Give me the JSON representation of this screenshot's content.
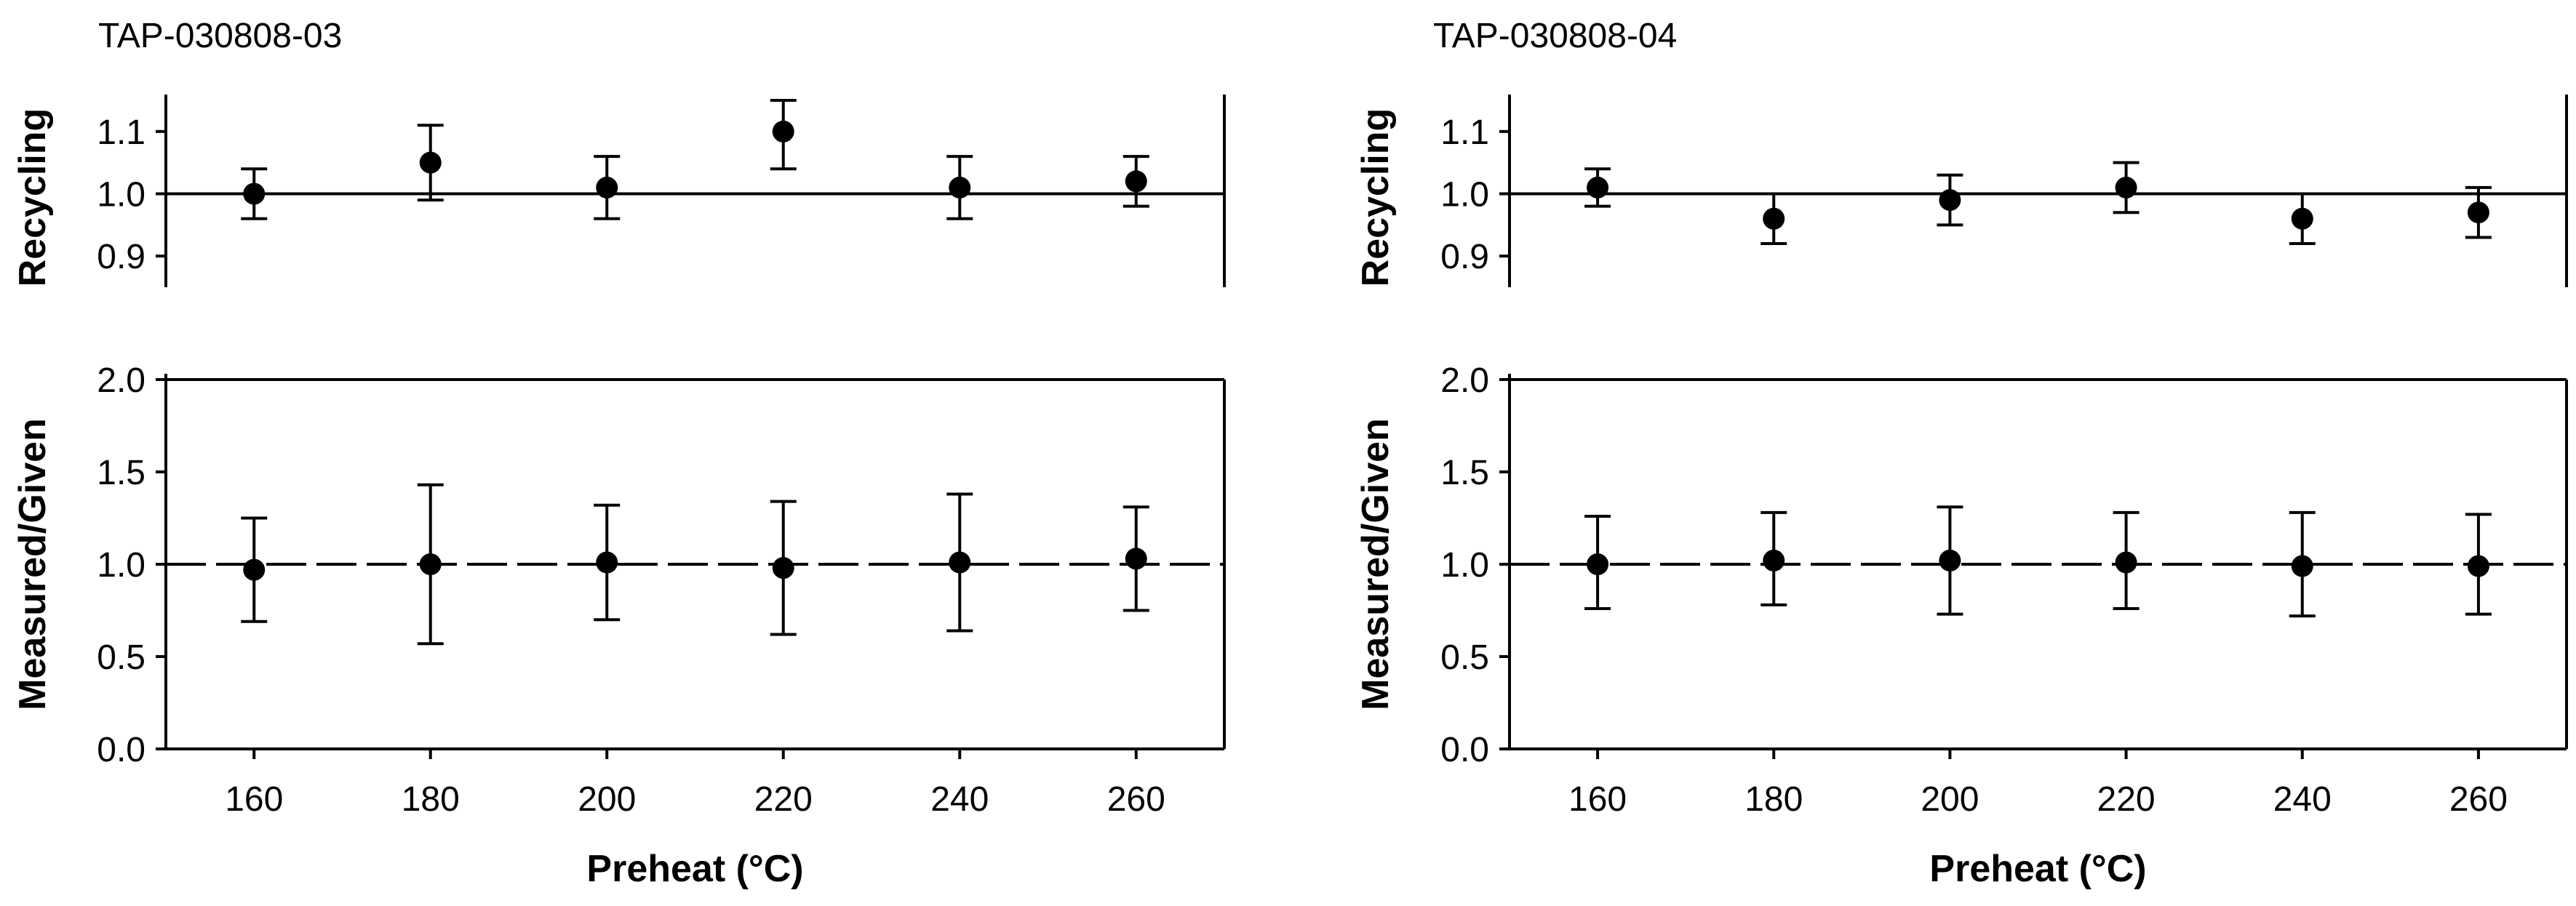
{
  "chart_data": [
    {
      "type": "scatter",
      "title": "TAP-030808-03",
      "ylabel": "Recycling",
      "xlabel": "",
      "x": [
        160,
        180,
        200,
        220,
        240,
        260
      ],
      "xlim": [
        150,
        270
      ],
      "xticks": [
        160,
        180,
        200,
        220,
        240,
        260
      ],
      "ylim": [
        0.85,
        1.15
      ],
      "yticks": [
        "0.9",
        "1.0",
        "1.1"
      ],
      "reference_line": {
        "y": 1.0,
        "style": "solid"
      },
      "series": [
        {
          "values": [
            1.0,
            1.05,
            1.01,
            1.1,
            1.01,
            1.02
          ],
          "err_low": [
            0.96,
            0.99,
            0.96,
            1.04,
            0.96,
            0.98
          ],
          "err_high": [
            1.04,
            1.11,
            1.06,
            1.15,
            1.06,
            1.06
          ]
        }
      ]
    },
    {
      "type": "scatter",
      "title": "",
      "ylabel": "Measured/Given",
      "xlabel": "Preheat (°C)",
      "x": [
        160,
        180,
        200,
        220,
        240,
        260
      ],
      "xlim": [
        150,
        270
      ],
      "xticks": [
        160,
        180,
        200,
        220,
        240,
        260
      ],
      "ylim": [
        0.0,
        2.0
      ],
      "yticks": [
        "0.0",
        "0.5",
        "1.0",
        "1.5",
        "2.0"
      ],
      "reference_line": {
        "y": 1.0,
        "style": "dashed"
      },
      "series": [
        {
          "values": [
            0.97,
            1.0,
            1.01,
            0.98,
            1.01,
            1.03
          ],
          "err_low": [
            0.69,
            0.57,
            0.7,
            0.62,
            0.64,
            0.75
          ],
          "err_high": [
            1.25,
            1.43,
            1.32,
            1.34,
            1.38,
            1.31
          ]
        }
      ]
    },
    {
      "type": "scatter",
      "title": "TAP-030808-04",
      "ylabel": "Recycling",
      "xlabel": "",
      "x": [
        160,
        180,
        200,
        220,
        240,
        260
      ],
      "xlim": [
        150,
        270
      ],
      "xticks": [
        160,
        180,
        200,
        220,
        240,
        260
      ],
      "ylim": [
        0.85,
        1.15
      ],
      "yticks": [
        "0.9",
        "1.0",
        "1.1"
      ],
      "reference_line": {
        "y": 1.0,
        "style": "solid"
      },
      "series": [
        {
          "values": [
            1.01,
            0.96,
            0.99,
            1.01,
            0.96,
            0.97
          ],
          "err_low": [
            0.98,
            0.92,
            0.95,
            0.97,
            0.92,
            0.93
          ],
          "err_high": [
            1.04,
            1.0,
            1.03,
            1.05,
            1.0,
            1.01
          ]
        }
      ]
    },
    {
      "type": "scatter",
      "title": "",
      "ylabel": "Measured/Given",
      "xlabel": "Preheat (°C)",
      "x": [
        160,
        180,
        200,
        220,
        240,
        260
      ],
      "xlim": [
        150,
        270
      ],
      "xticks": [
        160,
        180,
        200,
        220,
        240,
        260
      ],
      "ylim": [
        0.0,
        2.0
      ],
      "yticks": [
        "0.0",
        "0.5",
        "1.0",
        "1.5",
        "2.0"
      ],
      "reference_line": {
        "y": 1.0,
        "style": "dashed"
      },
      "series": [
        {
          "values": [
            1.0,
            1.02,
            1.02,
            1.01,
            0.99,
            0.99
          ],
          "err_low": [
            0.76,
            0.78,
            0.73,
            0.76,
            0.72,
            0.73
          ],
          "err_high": [
            1.26,
            1.28,
            1.31,
            1.28,
            1.28,
            1.27
          ]
        }
      ]
    }
  ]
}
